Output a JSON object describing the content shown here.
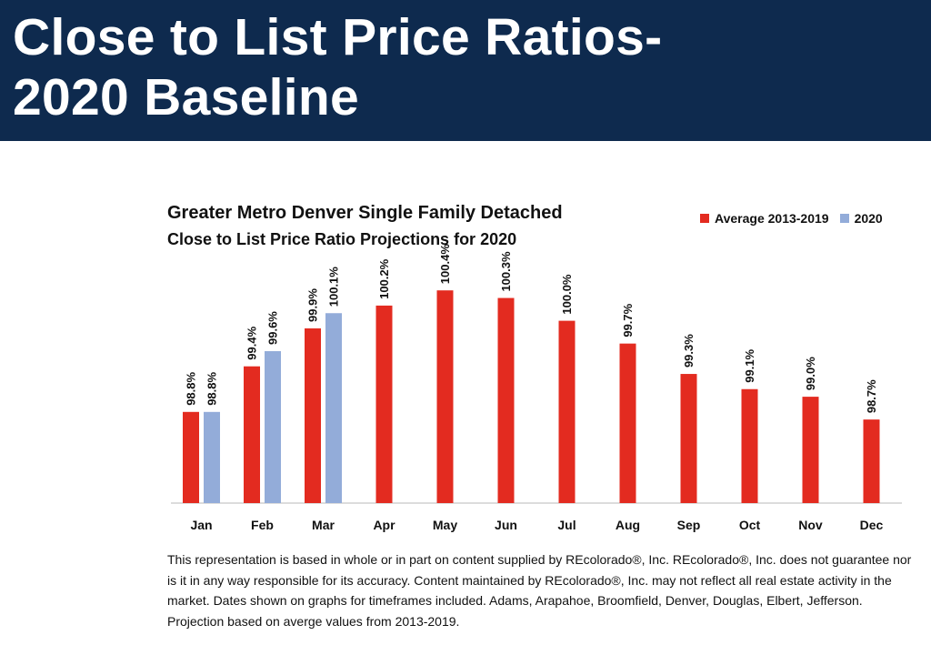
{
  "banner": {
    "title": "Close to List Price Ratios- 2020 Baseline"
  },
  "colors": {
    "banner": "#0e2a4e",
    "average": "#e32b20",
    "y2020": "#93acd9"
  },
  "chart_data": {
    "type": "bar",
    "title": "Greater Metro Denver Single Family Detached",
    "subtitle": "Close to List Price Ratio Projections for 2020",
    "xlabel": "",
    "ylabel": "",
    "categories": [
      "Jan",
      "Feb",
      "Mar",
      "Apr",
      "May",
      "Jun",
      "Jul",
      "Aug",
      "Sep",
      "Oct",
      "Nov",
      "Dec"
    ],
    "series": [
      {
        "name": "Average 2013-2019",
        "color": "#e32b20",
        "values": [
          98.8,
          99.4,
          99.9,
          100.2,
          100.4,
          100.3,
          100.0,
          99.7,
          99.3,
          99.1,
          99.0,
          98.7
        ],
        "labels": [
          "98.8%",
          "99.4%",
          "99.9%",
          "100.2%",
          "100.4%",
          "100.3%",
          "100.0%",
          "99.7%",
          "99.3%",
          "99.1%",
          "99.0%",
          "98.7%"
        ]
      },
      {
        "name": "2020",
        "color": "#93acd9",
        "values": [
          98.8,
          99.6,
          100.1,
          null,
          null,
          null,
          null,
          null,
          null,
          null,
          null,
          null
        ],
        "labels": [
          "98.8%",
          "99.6%",
          "100.1%",
          null,
          null,
          null,
          null,
          null,
          null,
          null,
          null,
          null
        ]
      }
    ],
    "ylim": [
      97.6,
      100.7
    ],
    "grid": false,
    "legend_position": "top-right"
  },
  "footnote": "This representation is based in whole or in part on content supplied by REcolorado®, Inc. REcolorado®, Inc. does not guarantee nor is it in any way responsible for its accuracy. Content maintained by REcolorado®, Inc. may not reflect all real estate activity in the market. Dates shown on graphs for timeframes included.  Adams, Arapahoe, Broomfield, Denver, Douglas, Elbert, Jefferson. Projection based on averge values from 2013-2019."
}
